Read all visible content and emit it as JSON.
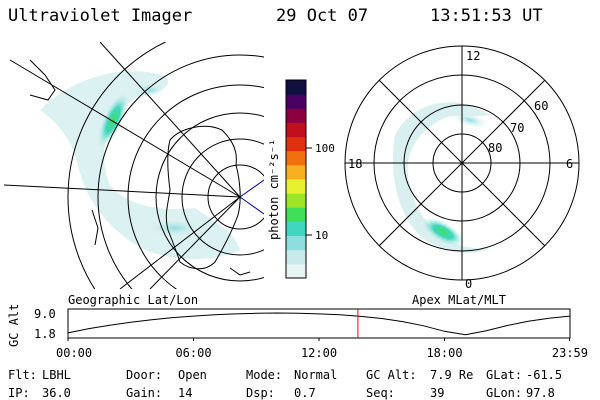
{
  "header": {
    "title": "Ultraviolet Imager",
    "date": "29 Oct 07",
    "time": "13:51:53 UT"
  },
  "geo_panel": {
    "caption": "Geographic Lat/Lon"
  },
  "apex_panel": {
    "caption": "Apex MLat/MLT",
    "mlt_labels": [
      "12",
      "18",
      "6",
      "0"
    ],
    "mlat_labels": [
      "60",
      "70",
      "80"
    ]
  },
  "colorbar": {
    "unit_label": "photon cm⁻²s⁻¹",
    "ticks": [
      "100",
      "10"
    ],
    "colors": [
      "#e8f4f4",
      "#c8eaea",
      "#8fdede",
      "#40d6c0",
      "#3fdf5a",
      "#9ee52a",
      "#e8f030",
      "#f6b020",
      "#f07010",
      "#e03010",
      "#c01020",
      "#8c0040",
      "#4a0060",
      "#101040"
    ]
  },
  "chart_data": {
    "type": "line",
    "title": "",
    "xlabel": "",
    "ylabel": "GC Alt",
    "x_tick_labels": [
      "00:00",
      "06:00",
      "12:00",
      "18:00",
      "23:59"
    ],
    "y_tick_labels": [
      "9.0",
      "1.8"
    ],
    "ylim": [
      1.8,
      9.0
    ],
    "x_hours": [
      0,
      1,
      2,
      3,
      4,
      5,
      6,
      7,
      8,
      9,
      10,
      11,
      12,
      13,
      14,
      15,
      16,
      17,
      18,
      19,
      20,
      21,
      22,
      23,
      23.98
    ],
    "values": [
      2.5,
      3.9,
      5.0,
      6.0,
      6.8,
      7.5,
      8.0,
      8.4,
      8.7,
      8.9,
      9.0,
      8.9,
      8.7,
      8.4,
      7.9,
      7.2,
      6.2,
      4.8,
      3.0,
      1.9,
      3.2,
      4.9,
      6.3,
      7.3,
      8.0
    ],
    "current_time_hours": 13.86,
    "line_color": "#000000",
    "marker_color": "#ff0000"
  },
  "footer": {
    "row1": [
      {
        "label": "Flt:",
        "value": "LBHL"
      },
      {
        "label": "Door:",
        "value": "Open"
      },
      {
        "label": "Mode:",
        "value": "Normal"
      },
      {
        "label": "GC Alt:",
        "value": "7.9 Re"
      },
      {
        "label": "GLat:",
        "value": "-61.5"
      }
    ],
    "row2": [
      {
        "label": "IP:",
        "value": "36.0"
      },
      {
        "label": "Gain:",
        "value": "14"
      },
      {
        "label": "Dsp:",
        "value": "0.7"
      },
      {
        "label": "Seq:",
        "value": "39"
      },
      {
        "label": "GLon:",
        "value": "97.8"
      }
    ]
  }
}
